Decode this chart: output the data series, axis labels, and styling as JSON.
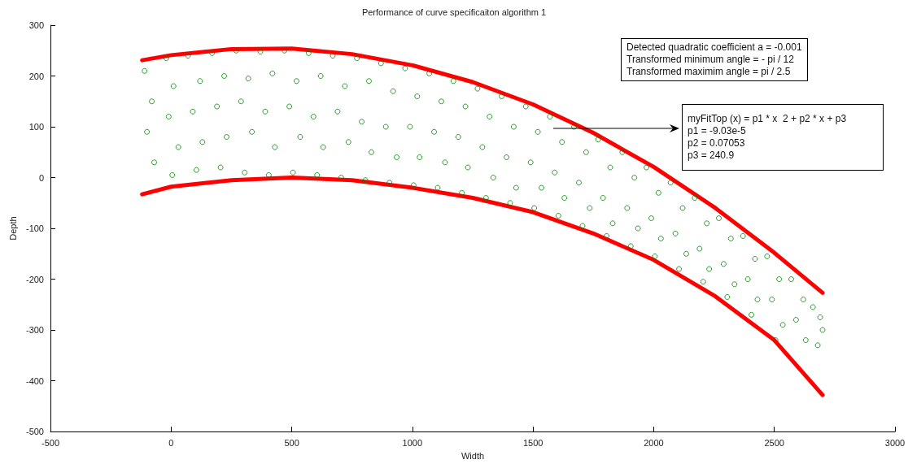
{
  "chart_data": {
    "type": "scatter",
    "title": "Performance of curve specificaiton algorithm 1",
    "xlabel": "Width",
    "ylabel": "Depth",
    "xlim": [
      -500,
      3000
    ],
    "xticks": [
      -500,
      0,
      500,
      1000,
      1500,
      2000,
      2500,
      3000
    ],
    "ylim": [
      -500,
      300
    ],
    "yticks": [
      -500,
      -400,
      -300,
      -200,
      -100,
      0,
      100,
      200,
      300
    ],
    "annotations": [
      "Detected quadratic coefficient a = -0.001\nTransformed minimum angle = - pi / 12\nTransformed maximim angle = pi / 2.5",
      "myFitTop (x) = p1 * x  2 + p2 * x + p3\np1 = -9.03e-5\np2 = 0.07053\np3 = 240.9"
    ],
    "series": [
      {
        "marker": "circle",
        "color": "#008000",
        "x": [
          -110,
          -80,
          -100,
          -70,
          -20,
          10,
          -10,
          30,
          5,
          70,
          120,
          90,
          130,
          105,
          170,
          220,
          190,
          230,
          205,
          270,
          320,
          290,
          335,
          305,
          370,
          420,
          390,
          430,
          405,
          470,
          520,
          490,
          535,
          505,
          570,
          620,
          590,
          630,
          605,
          670,
          720,
          690,
          735,
          705,
          770,
          820,
          790,
          830,
          805,
          870,
          920,
          890,
          935,
          905,
          970,
          1020,
          990,
          1030,
          1005,
          1070,
          1120,
          1090,
          1135,
          1105,
          1170,
          1220,
          1190,
          1230,
          1205,
          1270,
          1320,
          1290,
          1335,
          1305,
          1370,
          1420,
          1390,
          1430,
          1405,
          1470,
          1520,
          1490,
          1535,
          1505,
          1570,
          1620,
          1590,
          1630,
          1605,
          1670,
          1720,
          1690,
          1735,
          1705,
          1770,
          1820,
          1790,
          1830,
          1805,
          1870,
          1920,
          1890,
          1935,
          1905,
          1970,
          2020,
          1990,
          2030,
          2005,
          2070,
          2120,
          2090,
          2135,
          2105,
          2170,
          2220,
          2190,
          2230,
          2205,
          2270,
          2320,
          2290,
          2335,
          2305,
          2370,
          2420,
          2390,
          2430,
          2405,
          2470,
          2520,
          2490,
          2535,
          2505,
          2570,
          2620,
          2590,
          2630,
          2660,
          2690,
          2700,
          2680
        ],
        "values": [
          210,
          150,
          90,
          30,
          235,
          180,
          120,
          60,
          5,
          240,
          190,
          130,
          70,
          15,
          245,
          200,
          140,
          80,
          20,
          250,
          195,
          150,
          90,
          10,
          248,
          205,
          130,
          60,
          5,
          250,
          190,
          140,
          80,
          10,
          245,
          200,
          120,
          60,
          5,
          240,
          180,
          130,
          70,
          0,
          235,
          190,
          110,
          50,
          -5,
          225,
          170,
          100,
          40,
          -10,
          215,
          160,
          100,
          40,
          -15,
          205,
          150,
          90,
          30,
          -20,
          190,
          140,
          80,
          20,
          -30,
          175,
          120,
          60,
          0,
          -40,
          160,
          100,
          40,
          -20,
          -50,
          140,
          90,
          30,
          -20,
          -60,
          120,
          70,
          10,
          -40,
          -75,
          100,
          50,
          -10,
          -60,
          -95,
          75,
          20,
          -40,
          -90,
          -115,
          50,
          0,
          -60,
          -100,
          -135,
          20,
          -30,
          -80,
          -120,
          -155,
          -10,
          -60,
          -110,
          -150,
          -180,
          -40,
          -90,
          -140,
          -180,
          -205,
          -80,
          -120,
          -170,
          -210,
          -235,
          -115,
          -160,
          -200,
          -240,
          -270,
          -155,
          -200,
          -240,
          -290,
          -320,
          -200,
          -240,
          -280,
          -320,
          -255,
          -275,
          -300,
          -330
        ]
      },
      {
        "type": "line",
        "marker": "none",
        "color": "#ff0000",
        "x": [
          -120,
          0,
          250,
          500,
          750,
          1000,
          1250,
          1500,
          1750,
          2000,
          2250,
          2500,
          2700
        ],
        "values": [
          231,
          241,
          253,
          254,
          243,
          221,
          188,
          144,
          88,
          21,
          -58,
          -148,
          -227
        ]
      },
      {
        "type": "line",
        "marker": "none",
        "color": "#ff0000",
        "x": [
          -120,
          0,
          250,
          500,
          750,
          1000,
          1250,
          1500,
          1750,
          2000,
          2250,
          2500,
          2700
        ],
        "values": [
          -33,
          -18,
          -5,
          0,
          -5,
          -20,
          -40,
          -68,
          -110,
          -162,
          -232,
          -320,
          -428
        ]
      }
    ]
  }
}
